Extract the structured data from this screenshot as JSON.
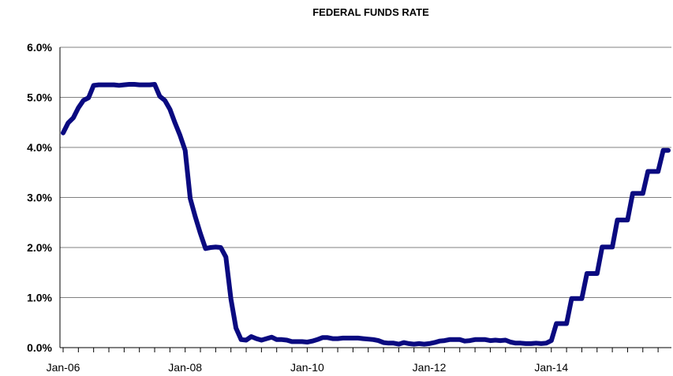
{
  "chart_data": {
    "type": "line",
    "title": "FEDERAL FUNDS RATE",
    "xlabel": "",
    "ylabel": "",
    "ylim": [
      0,
      6
    ],
    "yticks": [
      "0.0%",
      "1.0%",
      "2.0%",
      "3.0%",
      "4.0%",
      "5.0%",
      "6.0%"
    ],
    "xticks": [
      "Jan-06",
      "Jan-08",
      "Jan-10",
      "Jan-12",
      "Jan-14"
    ],
    "grid": "horizontal",
    "colors": {
      "line": "#0a0a80",
      "grid": "#808080"
    },
    "series": [
      {
        "x": [
          "2006-01",
          "2006-02",
          "2006-03",
          "2006-04",
          "2006-05",
          "2006-06",
          "2006-07",
          "2006-08",
          "2006-09",
          "2006-10",
          "2006-11",
          "2006-12",
          "2007-01",
          "2007-02",
          "2007-03",
          "2007-04",
          "2007-05",
          "2007-06",
          "2007-07",
          "2007-08",
          "2007-09",
          "2007-10",
          "2007-11",
          "2007-12",
          "2008-01",
          "2008-02",
          "2008-03",
          "2008-04",
          "2008-05",
          "2008-06",
          "2008-07",
          "2008-08",
          "2008-09",
          "2008-10",
          "2008-11",
          "2008-12",
          "2009-01",
          "2009-02",
          "2009-03",
          "2009-04",
          "2009-05",
          "2009-06",
          "2009-07",
          "2009-08",
          "2009-09",
          "2009-10",
          "2009-11",
          "2009-12",
          "2010-01",
          "2010-02",
          "2010-03",
          "2010-04",
          "2010-05",
          "2010-06",
          "2010-07",
          "2010-08",
          "2010-09",
          "2010-10",
          "2010-11",
          "2010-12",
          "2011-01",
          "2011-02",
          "2011-03",
          "2011-04",
          "2011-05",
          "2011-06",
          "2011-07",
          "2011-08",
          "2011-09",
          "2011-10",
          "2011-11",
          "2011-12",
          "2012-01",
          "2012-02",
          "2012-03",
          "2012-04",
          "2012-05",
          "2012-06",
          "2012-07",
          "2012-08",
          "2012-09",
          "2012-10",
          "2012-11",
          "2012-12",
          "2013-01",
          "2013-02",
          "2013-03",
          "2013-04",
          "2013-05",
          "2013-06",
          "2013-07",
          "2013-08",
          "2013-09",
          "2013-10",
          "2013-11",
          "2013-12",
          "2014-01",
          "2014-02",
          "2014-03",
          "2014-04",
          "2014-05",
          "2014-06",
          "2014-07",
          "2014-08",
          "2014-09",
          "2014-10",
          "2014-11",
          "2014-12",
          "2015-01",
          "2015-02",
          "2015-03",
          "2015-04",
          "2015-05",
          "2015-06",
          "2015-07",
          "2015-08",
          "2015-09",
          "2015-10",
          "2015-11",
          "2015-12"
        ],
        "values": [
          4.29,
          4.49,
          4.59,
          4.79,
          4.94,
          4.99,
          5.24,
          5.25,
          5.25,
          5.25,
          5.25,
          5.24,
          5.25,
          5.26,
          5.26,
          5.25,
          5.25,
          5.25,
          5.26,
          5.02,
          4.94,
          4.76,
          4.49,
          4.24,
          3.94,
          2.98,
          2.61,
          2.28,
          1.98,
          2.0,
          2.01,
          2.0,
          1.81,
          0.97,
          0.39,
          0.16,
          0.15,
          0.22,
          0.18,
          0.15,
          0.18,
          0.21,
          0.16,
          0.16,
          0.15,
          0.12,
          0.12,
          0.12,
          0.11,
          0.13,
          0.16,
          0.2,
          0.2,
          0.18,
          0.18,
          0.19,
          0.19,
          0.19,
          0.19,
          0.18,
          0.17,
          0.16,
          0.14,
          0.1,
          0.09,
          0.09,
          0.07,
          0.1,
          0.08,
          0.07,
          0.08,
          0.07,
          0.08,
          0.1,
          0.13,
          0.14,
          0.16,
          0.16,
          0.16,
          0.13,
          0.14,
          0.16,
          0.16,
          0.16,
          0.14,
          0.15,
          0.14,
          0.15,
          0.11,
          0.09,
          0.09,
          0.08,
          0.08,
          0.09,
          0.08,
          0.09,
          0.14,
          0.48,
          0.48,
          0.48,
          0.98,
          0.98,
          0.98,
          1.48,
          1.48,
          1.48,
          2.01,
          2.01,
          2.01,
          2.55,
          2.55,
          2.55,
          3.08,
          3.08,
          3.08,
          3.52,
          3.52,
          3.52,
          3.94,
          3.94
        ]
      }
    ]
  }
}
